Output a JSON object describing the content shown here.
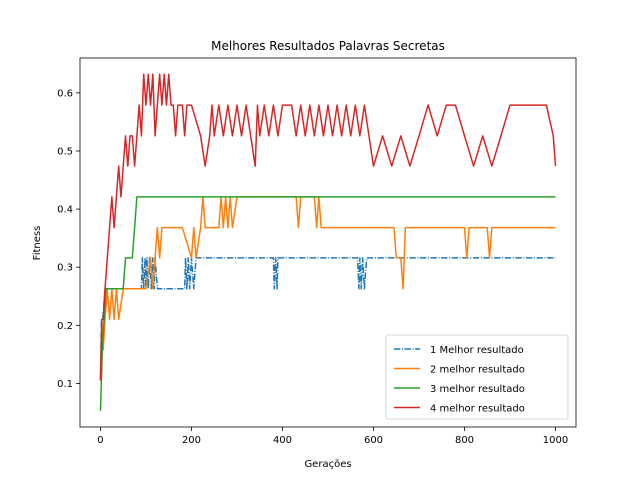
{
  "chart_data": {
    "type": "line",
    "title": "Melhores Resultados Palavras Secretas",
    "xlabel": "Gerações",
    "ylabel": "Fitness",
    "xlim": [
      -45,
      1045
    ],
    "ylim": [
      0.025,
      0.66
    ],
    "xticks": [
      0,
      200,
      400,
      600,
      800,
      1000
    ],
    "yticks": [
      0.1,
      0.2,
      0.3,
      0.4,
      0.5,
      0.6
    ],
    "legend_position": "lower-right",
    "grid": false,
    "series": [
      {
        "name": "1 Melhor resultado",
        "color": "#1f77b4",
        "dash": "dashdot",
        "x": [
          0,
          2,
          5,
          10,
          60,
          65,
          80,
          90,
          92,
          95,
          98,
          100,
          102,
          105,
          108,
          112,
          115,
          118,
          120,
          125,
          130,
          140,
          150,
          160,
          170,
          180,
          185,
          187,
          190,
          193,
          196,
          200,
          205,
          210,
          215,
          220,
          300,
          380,
          382,
          385,
          388,
          390,
          400,
          500,
          565,
          568,
          570,
          573,
          576,
          580,
          585,
          600,
          700,
          800,
          900,
          1000
        ],
        "y": [
          0.105,
          0.21,
          0.21,
          0.263,
          0.263,
          0.263,
          0.263,
          0.263,
          0.316,
          0.263,
          0.316,
          0.263,
          0.316,
          0.263,
          0.316,
          0.263,
          0.316,
          0.263,
          0.316,
          0.263,
          0.263,
          0.263,
          0.263,
          0.263,
          0.263,
          0.263,
          0.263,
          0.316,
          0.263,
          0.316,
          0.263,
          0.316,
          0.263,
          0.316,
          0.316,
          0.316,
          0.316,
          0.316,
          0.263,
          0.316,
          0.263,
          0.316,
          0.316,
          0.316,
          0.316,
          0.263,
          0.316,
          0.263,
          0.316,
          0.263,
          0.316,
          0.316,
          0.316,
          0.316,
          0.316,
          0.316
        ]
      },
      {
        "name": "2 melhor resultado",
        "color": "#ff7f0e",
        "dash": "solid",
        "x": [
          0,
          3,
          6,
          10,
          15,
          20,
          25,
          30,
          35,
          40,
          50,
          60,
          70,
          80,
          100,
          110,
          115,
          120,
          125,
          130,
          135,
          140,
          150,
          180,
          200,
          205,
          210,
          220,
          225,
          230,
          240,
          260,
          265,
          270,
          275,
          280,
          285,
          290,
          300,
          350,
          430,
          435,
          440,
          470,
          475,
          480,
          485,
          490,
          600,
          645,
          650,
          660,
          665,
          670,
          700,
          800,
          805,
          810,
          850,
          855,
          860,
          900,
          1000
        ],
        "y": [
          0.105,
          0.21,
          0.158,
          0.21,
          0.263,
          0.21,
          0.263,
          0.21,
          0.263,
          0.21,
          0.263,
          0.263,
          0.263,
          0.263,
          0.263,
          0.316,
          0.263,
          0.316,
          0.368,
          0.316,
          0.368,
          0.368,
          0.368,
          0.368,
          0.316,
          0.368,
          0.316,
          0.368,
          0.421,
          0.368,
          0.368,
          0.368,
          0.421,
          0.368,
          0.421,
          0.368,
          0.421,
          0.368,
          0.421,
          0.421,
          0.421,
          0.368,
          0.421,
          0.421,
          0.368,
          0.421,
          0.368,
          0.368,
          0.368,
          0.368,
          0.316,
          0.316,
          0.263,
          0.368,
          0.368,
          0.368,
          0.316,
          0.368,
          0.368,
          0.316,
          0.368,
          0.368,
          0.368
        ]
      },
      {
        "name": "3 melhor resultado",
        "color": "#2ca02c",
        "dash": "solid",
        "x": [
          0,
          2,
          4,
          8,
          12,
          20,
          30,
          50,
          55,
          60,
          70,
          75,
          80,
          100,
          200,
          300,
          400,
          500,
          600,
          700,
          800,
          900,
          1000
        ],
        "y": [
          0.053,
          0.105,
          0.158,
          0.21,
          0.263,
          0.263,
          0.263,
          0.263,
          0.316,
          0.316,
          0.316,
          0.368,
          0.421,
          0.421,
          0.421,
          0.421,
          0.421,
          0.421,
          0.421,
          0.421,
          0.421,
          0.421,
          0.421
        ]
      },
      {
        "name": "4 melhor resultado",
        "color": "#d62728",
        "dash": "solid",
        "x": [
          0,
          3,
          6,
          10,
          15,
          20,
          25,
          30,
          35,
          40,
          45,
          50,
          55,
          60,
          65,
          70,
          75,
          80,
          85,
          90,
          95,
          100,
          105,
          110,
          115,
          120,
          125,
          130,
          135,
          140,
          145,
          150,
          155,
          160,
          165,
          170,
          175,
          180,
          185,
          190,
          200,
          220,
          230,
          240,
          245,
          250,
          260,
          270,
          280,
          290,
          300,
          310,
          320,
          330,
          340,
          345,
          350,
          360,
          370,
          380,
          390,
          400,
          420,
          430,
          440,
          450,
          460,
          470,
          480,
          490,
          500,
          510,
          520,
          530,
          540,
          550,
          560,
          570,
          580,
          590,
          600,
          620,
          640,
          660,
          680,
          700,
          720,
          740,
          760,
          780,
          800,
          820,
          840,
          860,
          880,
          900,
          920,
          940,
          960,
          980,
          995,
          1000
        ],
        "y": [
          0.105,
          0.21,
          0.21,
          0.263,
          0.316,
          0.368,
          0.421,
          0.368,
          0.421,
          0.474,
          0.421,
          0.474,
          0.526,
          0.474,
          0.526,
          0.526,
          0.474,
          0.526,
          0.579,
          0.526,
          0.632,
          0.579,
          0.632,
          0.579,
          0.632,
          0.526,
          0.579,
          0.632,
          0.579,
          0.632,
          0.579,
          0.632,
          0.579,
          0.579,
          0.526,
          0.579,
          0.579,
          0.579,
          0.526,
          0.579,
          0.579,
          0.526,
          0.474,
          0.526,
          0.579,
          0.526,
          0.579,
          0.526,
          0.579,
          0.526,
          0.579,
          0.526,
          0.579,
          0.526,
          0.474,
          0.579,
          0.526,
          0.579,
          0.526,
          0.579,
          0.526,
          0.579,
          0.579,
          0.526,
          0.579,
          0.526,
          0.579,
          0.526,
          0.579,
          0.526,
          0.579,
          0.526,
          0.579,
          0.526,
          0.579,
          0.526,
          0.579,
          0.526,
          0.579,
          0.526,
          0.474,
          0.526,
          0.474,
          0.526,
          0.474,
          0.526,
          0.579,
          0.526,
          0.579,
          0.579,
          0.526,
          0.474,
          0.526,
          0.474,
          0.526,
          0.579,
          0.579,
          0.579,
          0.579,
          0.579,
          0.526,
          0.474
        ]
      }
    ]
  }
}
